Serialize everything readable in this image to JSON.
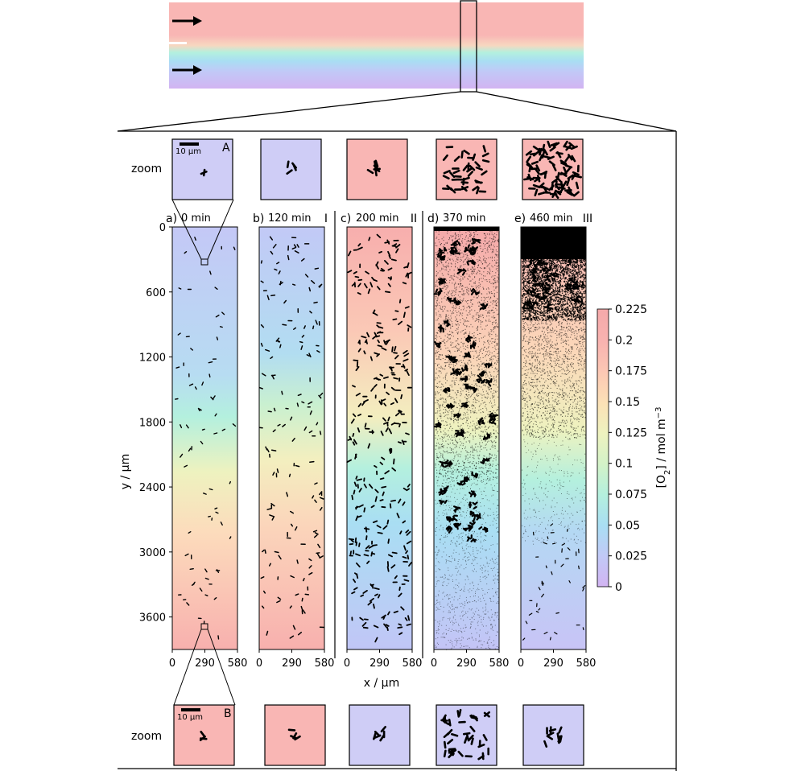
{
  "chart_data": {
    "type": "heatmap",
    "description_quantity": "[O2] / mol m-3",
    "colorbar": {
      "label_main": "[O",
      "label_sub": "2",
      "label_rest": "] / mol m",
      "label_sup": "−3",
      "ticks": [
        "0",
        "0.025",
        "0.05",
        "0.075",
        "0.1",
        "0.125",
        "0.15",
        "0.175",
        "0.2",
        "0.225"
      ],
      "range": [
        0,
        0.225
      ],
      "colors": [
        "#d2b4f2",
        "#c1c9f7",
        "#a9def3",
        "#b4f0de",
        "#d3f2c8",
        "#eef2bf",
        "#fbe1b6",
        "#fcc8b4",
        "#f9b3b0",
        "#f5a9aa"
      ]
    },
    "x_axis": {
      "label": "x / µm",
      "ticks": [
        "0",
        "290",
        "580"
      ],
      "range": [
        0,
        580
      ]
    },
    "y_axis": {
      "label": "y / µm",
      "ticks": [
        "0",
        "600",
        "1200",
        "1800",
        "2400",
        "3000",
        "3600"
      ],
      "range": [
        0,
        3900
      ]
    },
    "panels": [
      {
        "tag": "a)",
        "time": "0 min",
        "phase": "",
        "o2_top": 0.03,
        "o2_bottom": 0.22,
        "biomass": "sparse"
      },
      {
        "tag": "b)",
        "time": "120 min",
        "phase": "I",
        "o2_top": 0.025,
        "o2_bottom": 0.22,
        "biomass": "sparse"
      },
      {
        "tag": "c)",
        "time": "200 min",
        "phase": "II",
        "o2_top": 0.22,
        "o2_bottom": 0.03,
        "biomass": "moderate"
      },
      {
        "tag": "d)",
        "time": "370 min",
        "phase": "",
        "o2_top": 0.225,
        "o2_bottom": 0.02,
        "biomass": "dense"
      },
      {
        "tag": "e)",
        "time": "460 min",
        "phase": "III",
        "o2_top": 0.2,
        "o2_bottom": 0.02,
        "biomass": "very dense top"
      }
    ],
    "zoom_label": "zoom",
    "zoom_top": {
      "tag": "A",
      "scale": "10 µm",
      "colors": [
        "#cfcdf6",
        "#cfcdf6",
        "#f9b6b4",
        "#f9b6b4",
        "#f9b6b4"
      ]
    },
    "zoom_bottom": {
      "tag": "B",
      "scale": "10 µm",
      "colors": [
        "#f9b6b4",
        "#f9b6b4",
        "#cfcdf6",
        "#cfcdf6",
        "#cfcdf6"
      ]
    }
  }
}
